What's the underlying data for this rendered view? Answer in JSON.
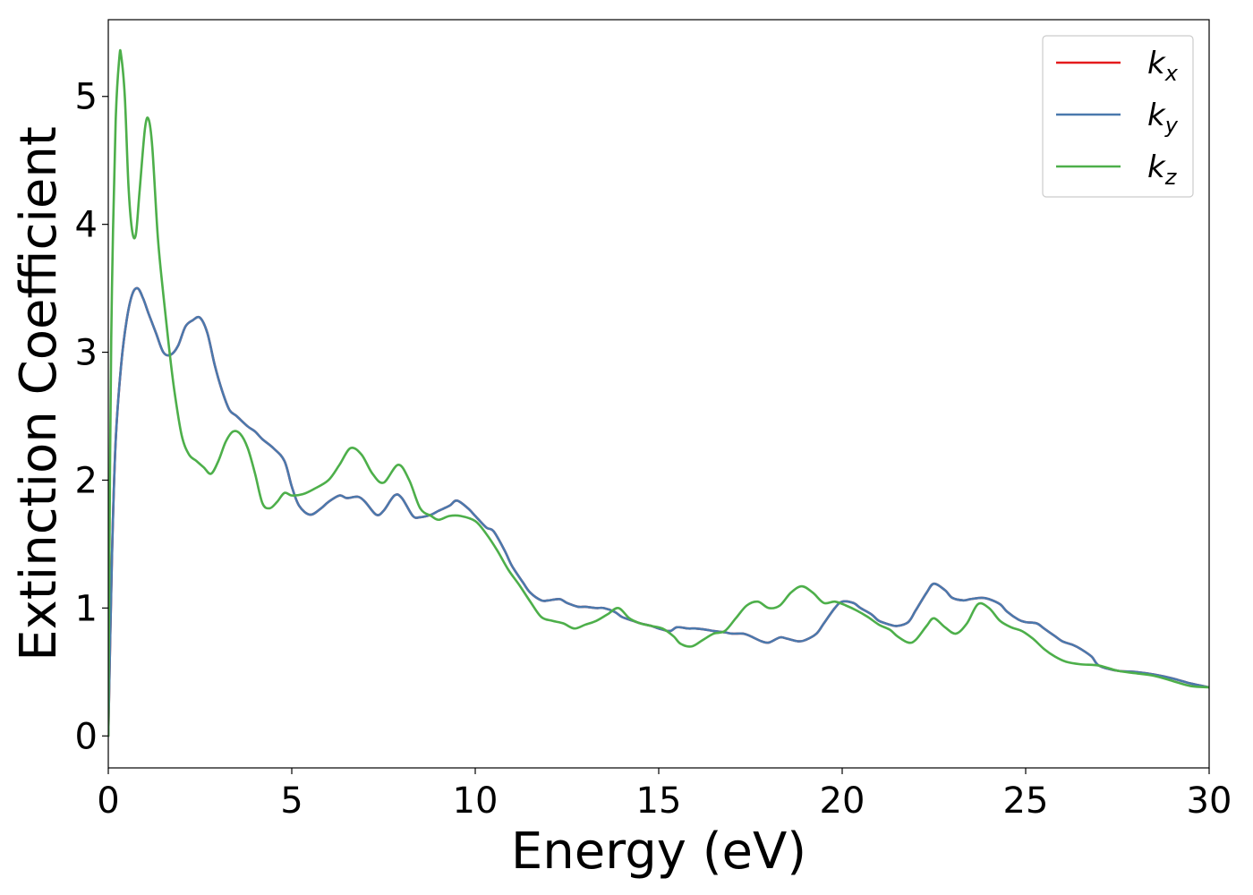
{
  "chart_data": {
    "type": "line",
    "xlabel": "Energy (eV)",
    "ylabel": "Extinction Coefficient",
    "xlim": [
      0,
      30
    ],
    "ylim": [
      -0.25,
      5.6
    ],
    "xticks": [
      "0",
      "5",
      "10",
      "15",
      "20",
      "25",
      "30"
    ],
    "yticks": [
      "0",
      "1",
      "2",
      "3",
      "4",
      "5"
    ],
    "grid": false,
    "legend_position": "top-right",
    "series": [
      {
        "name": "k",
        "sub": "x",
        "color": "#e41a1c",
        "x": [
          0,
          0.1,
          0.2,
          0.35,
          0.5,
          0.65,
          0.8,
          0.95,
          1.1,
          1.3,
          1.5,
          1.7,
          1.9,
          2.1,
          2.3,
          2.5,
          2.7,
          2.9,
          3.1,
          3.3,
          3.5,
          3.8,
          4.0,
          4.2,
          4.5,
          4.8,
          5.0,
          5.2,
          5.5,
          5.8,
          6.0,
          6.3,
          6.5,
          6.8,
          7.0,
          7.3,
          7.5,
          7.8,
          8.0,
          8.3,
          8.5,
          8.8,
          9.0,
          9.3,
          9.5,
          9.8,
          10.0,
          10.3,
          10.5,
          10.8,
          11.0,
          11.3,
          11.5,
          11.8,
          12.0,
          12.3,
          12.5,
          12.8,
          13.0,
          13.3,
          13.5,
          13.8,
          14.0,
          14.3,
          14.5,
          14.8,
          15.0,
          15.3,
          15.5,
          15.8,
          16.0,
          16.3,
          16.5,
          16.8,
          17.0,
          17.3,
          17.5,
          17.8,
          18.0,
          18.3,
          18.5,
          18.8,
          19.0,
          19.3,
          19.5,
          19.8,
          20.0,
          20.3,
          20.5,
          20.8,
          21.0,
          21.3,
          21.5,
          21.8,
          22.0,
          22.3,
          22.5,
          22.8,
          23.0,
          23.3,
          23.5,
          23.8,
          24.0,
          24.3,
          24.5,
          24.8,
          25.0,
          25.3,
          25.5,
          25.8,
          26.0,
          26.3,
          26.5,
          26.8,
          27.0,
          27.5,
          28.0,
          28.5,
          29.0,
          29.5,
          30.0
        ],
        "y": [
          0,
          1.4,
          2.3,
          2.9,
          3.25,
          3.45,
          3.5,
          3.42,
          3.3,
          3.15,
          3.0,
          2.98,
          3.05,
          3.2,
          3.25,
          3.27,
          3.15,
          2.9,
          2.7,
          2.55,
          2.5,
          2.42,
          2.38,
          2.32,
          2.25,
          2.15,
          1.95,
          1.8,
          1.73,
          1.78,
          1.83,
          1.88,
          1.86,
          1.87,
          1.83,
          1.73,
          1.76,
          1.88,
          1.86,
          1.72,
          1.71,
          1.73,
          1.76,
          1.8,
          1.84,
          1.78,
          1.72,
          1.63,
          1.6,
          1.45,
          1.33,
          1.2,
          1.12,
          1.06,
          1.06,
          1.07,
          1.04,
          1.01,
          1.01,
          1.0,
          1.0,
          0.97,
          0.93,
          0.9,
          0.88,
          0.86,
          0.84,
          0.82,
          0.85,
          0.84,
          0.84,
          0.83,
          0.82,
          0.81,
          0.8,
          0.8,
          0.78,
          0.74,
          0.73,
          0.77,
          0.76,
          0.74,
          0.75,
          0.8,
          0.88,
          1.0,
          1.05,
          1.04,
          1.0,
          0.95,
          0.9,
          0.87,
          0.86,
          0.89,
          0.98,
          1.12,
          1.19,
          1.14,
          1.08,
          1.06,
          1.07,
          1.08,
          1.07,
          1.03,
          0.97,
          0.91,
          0.89,
          0.88,
          0.84,
          0.78,
          0.74,
          0.71,
          0.68,
          0.62,
          0.55,
          0.51,
          0.5,
          0.48,
          0.45,
          0.41,
          0.38
        ]
      },
      {
        "name": "k",
        "sub": "y",
        "color": "#4a79ad",
        "x": [
          0,
          0.1,
          0.2,
          0.35,
          0.5,
          0.65,
          0.8,
          0.95,
          1.1,
          1.3,
          1.5,
          1.7,
          1.9,
          2.1,
          2.3,
          2.5,
          2.7,
          2.9,
          3.1,
          3.3,
          3.5,
          3.8,
          4.0,
          4.2,
          4.5,
          4.8,
          5.0,
          5.2,
          5.5,
          5.8,
          6.0,
          6.3,
          6.5,
          6.8,
          7.0,
          7.3,
          7.5,
          7.8,
          8.0,
          8.3,
          8.5,
          8.8,
          9.0,
          9.3,
          9.5,
          9.8,
          10.0,
          10.3,
          10.5,
          10.8,
          11.0,
          11.3,
          11.5,
          11.8,
          12.0,
          12.3,
          12.5,
          12.8,
          13.0,
          13.3,
          13.5,
          13.8,
          14.0,
          14.3,
          14.5,
          14.8,
          15.0,
          15.3,
          15.5,
          15.8,
          16.0,
          16.3,
          16.5,
          16.8,
          17.0,
          17.3,
          17.5,
          17.8,
          18.0,
          18.3,
          18.5,
          18.8,
          19.0,
          19.3,
          19.5,
          19.8,
          20.0,
          20.3,
          20.5,
          20.8,
          21.0,
          21.3,
          21.5,
          21.8,
          22.0,
          22.3,
          22.5,
          22.8,
          23.0,
          23.3,
          23.5,
          23.8,
          24.0,
          24.3,
          24.5,
          24.8,
          25.0,
          25.3,
          25.5,
          25.8,
          26.0,
          26.3,
          26.5,
          26.8,
          27.0,
          27.5,
          28.0,
          28.5,
          29.0,
          29.5,
          30.0
        ],
        "y": [
          0,
          1.4,
          2.3,
          2.9,
          3.25,
          3.45,
          3.5,
          3.42,
          3.3,
          3.15,
          3.0,
          2.98,
          3.05,
          3.2,
          3.25,
          3.27,
          3.15,
          2.9,
          2.7,
          2.55,
          2.5,
          2.42,
          2.38,
          2.32,
          2.25,
          2.15,
          1.95,
          1.8,
          1.73,
          1.78,
          1.83,
          1.88,
          1.86,
          1.87,
          1.83,
          1.73,
          1.76,
          1.88,
          1.86,
          1.72,
          1.71,
          1.73,
          1.76,
          1.8,
          1.84,
          1.78,
          1.72,
          1.63,
          1.6,
          1.45,
          1.33,
          1.2,
          1.12,
          1.06,
          1.06,
          1.07,
          1.04,
          1.01,
          1.01,
          1.0,
          1.0,
          0.97,
          0.93,
          0.9,
          0.88,
          0.86,
          0.84,
          0.82,
          0.85,
          0.84,
          0.84,
          0.83,
          0.82,
          0.81,
          0.8,
          0.8,
          0.78,
          0.74,
          0.73,
          0.77,
          0.76,
          0.74,
          0.75,
          0.8,
          0.88,
          1.0,
          1.05,
          1.04,
          1.0,
          0.95,
          0.9,
          0.87,
          0.86,
          0.89,
          0.98,
          1.12,
          1.19,
          1.14,
          1.08,
          1.06,
          1.07,
          1.08,
          1.07,
          1.03,
          0.97,
          0.91,
          0.89,
          0.88,
          0.84,
          0.78,
          0.74,
          0.71,
          0.68,
          0.62,
          0.55,
          0.51,
          0.5,
          0.48,
          0.45,
          0.41,
          0.38
        ]
      },
      {
        "name": "k",
        "sub": "z",
        "color": "#4daf4a",
        "x": [
          0,
          0.05,
          0.1,
          0.2,
          0.3,
          0.35,
          0.45,
          0.55,
          0.65,
          0.75,
          0.85,
          1.0,
          1.1,
          1.2,
          1.35,
          1.5,
          1.65,
          1.8,
          2.0,
          2.2,
          2.4,
          2.6,
          2.8,
          3.0,
          3.2,
          3.4,
          3.6,
          3.8,
          4.0,
          4.2,
          4.4,
          4.6,
          4.8,
          5.0,
          5.3,
          5.6,
          6.0,
          6.3,
          6.6,
          6.9,
          7.2,
          7.5,
          7.9,
          8.2,
          8.5,
          8.8,
          9.0,
          9.3,
          9.6,
          10.0,
          10.3,
          10.6,
          10.9,
          11.2,
          11.5,
          11.8,
          12.1,
          12.4,
          12.7,
          13.0,
          13.3,
          13.6,
          13.9,
          14.2,
          14.5,
          14.8,
          15.1,
          15.4,
          15.6,
          15.9,
          16.2,
          16.5,
          16.8,
          17.1,
          17.4,
          17.7,
          18.0,
          18.3,
          18.6,
          18.9,
          19.2,
          19.5,
          19.8,
          20.1,
          20.4,
          20.7,
          21.0,
          21.3,
          21.5,
          21.8,
          22.0,
          22.3,
          22.5,
          22.8,
          23.1,
          23.4,
          23.7,
          24.0,
          24.3,
          24.6,
          24.9,
          25.2,
          25.5,
          25.8,
          26.1,
          26.5,
          27.0,
          27.5,
          28.0,
          28.5,
          29.0,
          29.5,
          30.0
        ],
        "y": [
          0,
          2.2,
          3.5,
          4.8,
          5.3,
          5.32,
          5.0,
          4.3,
          3.95,
          3.92,
          4.25,
          4.75,
          4.82,
          4.6,
          3.9,
          3.45,
          3.05,
          2.7,
          2.35,
          2.2,
          2.15,
          2.1,
          2.05,
          2.15,
          2.3,
          2.38,
          2.36,
          2.25,
          2.05,
          1.82,
          1.78,
          1.83,
          1.9,
          1.88,
          1.89,
          1.93,
          2.0,
          2.12,
          2.25,
          2.2,
          2.05,
          1.98,
          2.12,
          2.0,
          1.78,
          1.72,
          1.69,
          1.72,
          1.72,
          1.68,
          1.58,
          1.45,
          1.3,
          1.18,
          1.05,
          0.93,
          0.9,
          0.88,
          0.84,
          0.87,
          0.9,
          0.95,
          1.0,
          0.92,
          0.88,
          0.86,
          0.84,
          0.78,
          0.72,
          0.7,
          0.75,
          0.8,
          0.82,
          0.92,
          1.02,
          1.05,
          1.0,
          1.02,
          1.12,
          1.17,
          1.12,
          1.04,
          1.05,
          1.02,
          0.98,
          0.93,
          0.87,
          0.83,
          0.78,
          0.73,
          0.75,
          0.86,
          0.92,
          0.85,
          0.8,
          0.88,
          1.03,
          1.0,
          0.9,
          0.85,
          0.82,
          0.76,
          0.68,
          0.62,
          0.58,
          0.56,
          0.55,
          0.51,
          0.49,
          0.47,
          0.43,
          0.39,
          0.38
        ]
      }
    ]
  }
}
